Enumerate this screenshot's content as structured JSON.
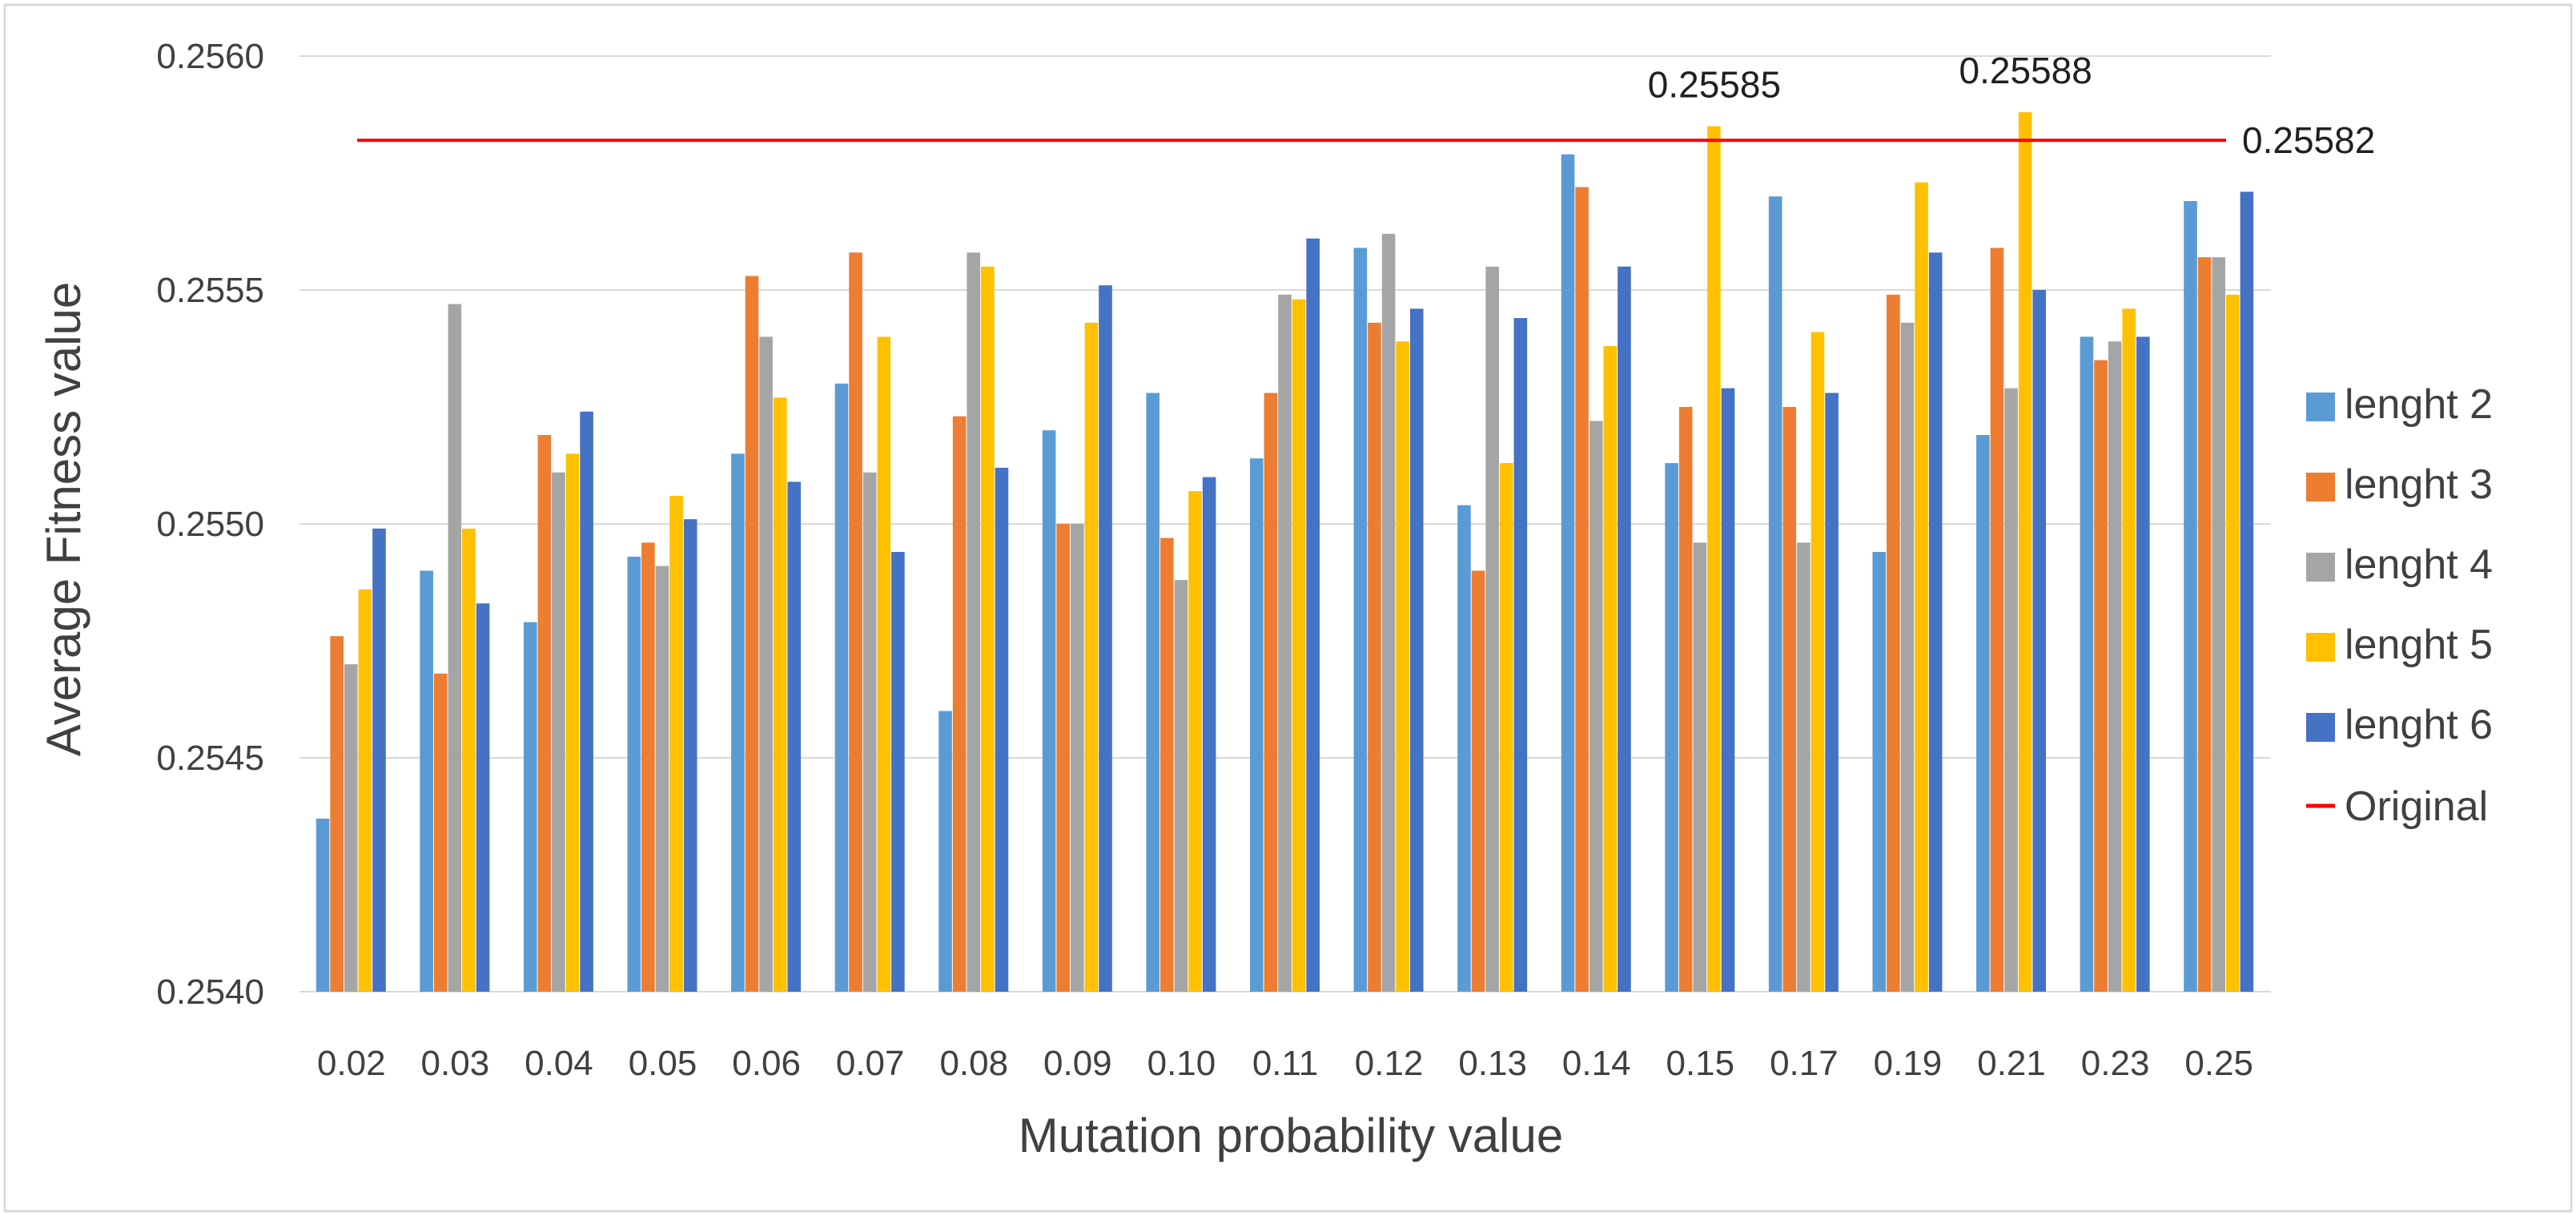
{
  "chart_data": {
    "type": "bar",
    "title": "",
    "xlabel": "Mutation probability value",
    "ylabel": "Average Fitness value",
    "ylim": [
      0.254,
      0.256
    ],
    "yticks": [
      "0.2540",
      "0.2545",
      "0.2550",
      "0.2555",
      "0.2560"
    ],
    "categories": [
      "0.02",
      "0.03",
      "0.04",
      "0.05",
      "0.06",
      "0.07",
      "0.08",
      "0.09",
      "0.10",
      "0.11",
      "0.12",
      "0.13",
      "0.14",
      "0.15",
      "0.17",
      "0.19",
      "0.21",
      "0.23",
      "0.25"
    ],
    "series": [
      {
        "name": "lenght 2",
        "color": "#5B9BD5",
        "values": [
          0.25437,
          0.2549,
          0.25479,
          0.25493,
          0.25515,
          0.2553,
          0.2546,
          0.2552,
          0.25528,
          0.25514,
          0.25559,
          0.25504,
          0.25579,
          0.25513,
          0.2557,
          0.25494,
          0.25519,
          0.2554,
          0.25569
        ]
      },
      {
        "name": "lenght 3",
        "color": "#ED7D31",
        "values": [
          0.25476,
          0.25468,
          0.25519,
          0.25496,
          0.25553,
          0.25558,
          0.25523,
          0.255,
          0.25497,
          0.25528,
          0.25543,
          0.2549,
          0.25572,
          0.25525,
          0.25525,
          0.25549,
          0.25559,
          0.25535,
          0.25557
        ]
      },
      {
        "name": "lenght 4",
        "color": "#A5A5A5",
        "values": [
          0.2547,
          0.25547,
          0.25511,
          0.25491,
          0.2554,
          0.25511,
          0.25558,
          0.255,
          0.25488,
          0.25549,
          0.25562,
          0.25555,
          0.25522,
          0.25496,
          0.25496,
          0.25543,
          0.25529,
          0.25539,
          0.25557
        ]
      },
      {
        "name": "lenght 5",
        "color": "#FFC000",
        "values": [
          0.25486,
          0.25499,
          0.25515,
          0.25506,
          0.25527,
          0.2554,
          0.25555,
          0.25543,
          0.25507,
          0.25548,
          0.25539,
          0.25513,
          0.25538,
          0.25585,
          0.25541,
          0.25573,
          0.25588,
          0.25546,
          0.25549
        ]
      },
      {
        "name": "lenght 6",
        "color": "#4472C4",
        "values": [
          0.25499,
          0.25483,
          0.25524,
          0.25501,
          0.25509,
          0.25494,
          0.25512,
          0.25551,
          0.2551,
          0.25561,
          0.25546,
          0.25544,
          0.25555,
          0.25529,
          0.25528,
          0.25558,
          0.2555,
          0.2554,
          0.25571
        ]
      }
    ],
    "reference_line": {
      "name": "Original",
      "value": 0.25582,
      "label": "0.25582",
      "color": "#FF0000"
    },
    "annotations": [
      {
        "text": "0.25585",
        "category": "0.15",
        "series": "lenght 5"
      },
      {
        "text": "0.25588",
        "category": "0.21",
        "series": "lenght 5"
      }
    ],
    "grid": true,
    "legend_position": "right"
  }
}
